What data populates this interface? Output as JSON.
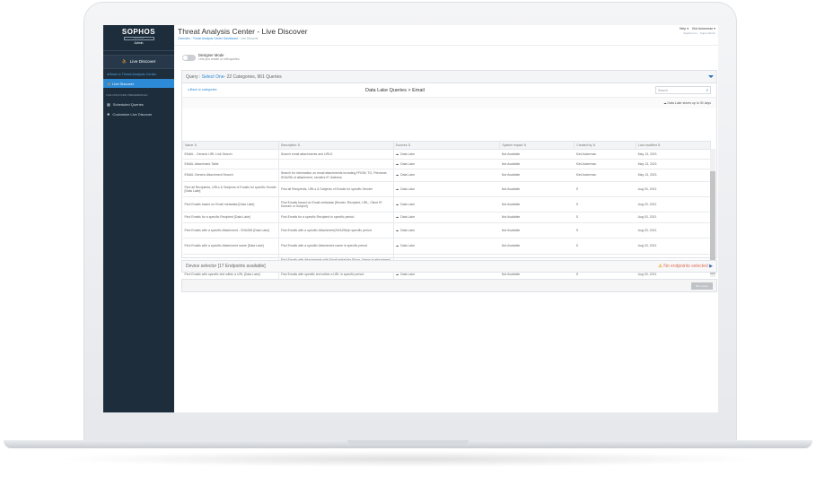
{
  "app": {
    "title": "Threat Analysis Center - Live Discover",
    "breadcrumb": [
      "Overview",
      "Threat Analysis Center Dashboard",
      "Live Discover"
    ]
  },
  "user": {
    "help": "Help ▾",
    "name": "Kiet Ackerman ▾",
    "org": "Sophos Inc. · Super Admin"
  },
  "sidebar": {
    "brand": "SOPHOS",
    "product": "CENTRAL",
    "role": "Admin",
    "section_title": "Live Discover",
    "back": "Back to Threat Analysis Center",
    "active": "Live Discover",
    "prefs_label": "LIVE DISCOVER PREFERENCES",
    "items": [
      {
        "label": "Scheduled Queries",
        "icon": "calendar-icon"
      },
      {
        "label": "Customize Live Discover",
        "icon": "gear-icon"
      }
    ]
  },
  "designer": {
    "label": "Designer Mode",
    "sub": "Lets you create or edit queries",
    "enabled": false
  },
  "query": {
    "prefix": "Query : ",
    "select": "Select One",
    "suffix": " - 22 Categories, 961 Queries"
  },
  "browser": {
    "back": "◂ Back to categories",
    "path": "Data Lake Queries > Email",
    "search_placeholder": "Search",
    "note": "Data Lake stores up to 30 days"
  },
  "table": {
    "columns": [
      "Name ⇅",
      "Description ⇅",
      "Sources ⇅",
      "System impact ⇅",
      "Created by ⇅",
      "Last modified ⇅"
    ],
    "rows": [
      [
        "EMAIL - Generic URL Link Search",
        "Search email attachments and URLS",
        "Data Lake",
        "Not Available",
        "Kiet Ackerman",
        "May 13, 2021"
      ],
      [
        "EMAIL Attachment Table",
        "",
        "Data Lake",
        "Not Available",
        "Kiet Ackerman",
        "May 13, 2021"
      ],
      [
        "EMAIL Generic Attachment Search",
        "Search for information on email attachments including FROM, TO, Filename, SHA256 of attachment, senders IP, Address",
        "Data Lake",
        "Not Available",
        "Kiet Ackerman",
        "May 13, 2021"
      ],
      [
        "Find all Recipients, URLs & Subjects of Emails for specific Sender [Data Lake]",
        "Find all Recipients, URLs & Subjects of Emails for specific Sender",
        "Data Lake",
        "Not Available",
        "S",
        "Aug 03, 2021"
      ],
      [
        "Find Emails based on Email metadata [Data Lake]",
        "Find Emails based on Email metadata [Sender, Recipient, URL, Client IP, Domain or Subject]",
        "Data Lake",
        "Not Available",
        "S",
        "Aug 03, 2021"
      ],
      [
        "Find Emails for a specific Recipient [Data Lake]",
        "Find Emails for a specific Recipient in specific period",
        "Data Lake",
        "Not Available",
        "S",
        "Aug 03, 2021"
      ],
      [
        "Find Emails with a specific Attachment - SHA256 [Data Lake]",
        "Find Emails with a specific Attachment(SHA256)in specific period",
        "Data Lake",
        "Not Available",
        "S",
        "Aug 03, 2021"
      ],
      [
        "Find Emails with a specific Attachment name [Data Lake]",
        "Find Emails with a specific Attachment name in specific period",
        "Data Lake",
        "Not Available",
        "S",
        "Aug 03, 2021"
      ],
      [
        "Find Emails with Attachments [Data Lake]",
        "Find Emails with Attachments with Email metadata [From, Name of attachment, SHA256 of attachment, Subject, To or Client IP]",
        "Data Lake",
        "Not Available",
        "S",
        "Aug 03, 2021"
      ],
      [
        "Find Emails with specific text within a URL [Data Lake]",
        "Find Emails with specific text within a URL in specific period",
        "Data Lake",
        "Not Available",
        "S",
        "Aug 03, 2021"
      ]
    ]
  },
  "device": {
    "label": "Device selector [17 Endpoints available]",
    "warning": "No endpoints selected"
  },
  "run_label": "Run query",
  "colors": {
    "sidebar": "#1e2d3b",
    "accent": "#2d8ad6",
    "warning": "#f0a020"
  }
}
